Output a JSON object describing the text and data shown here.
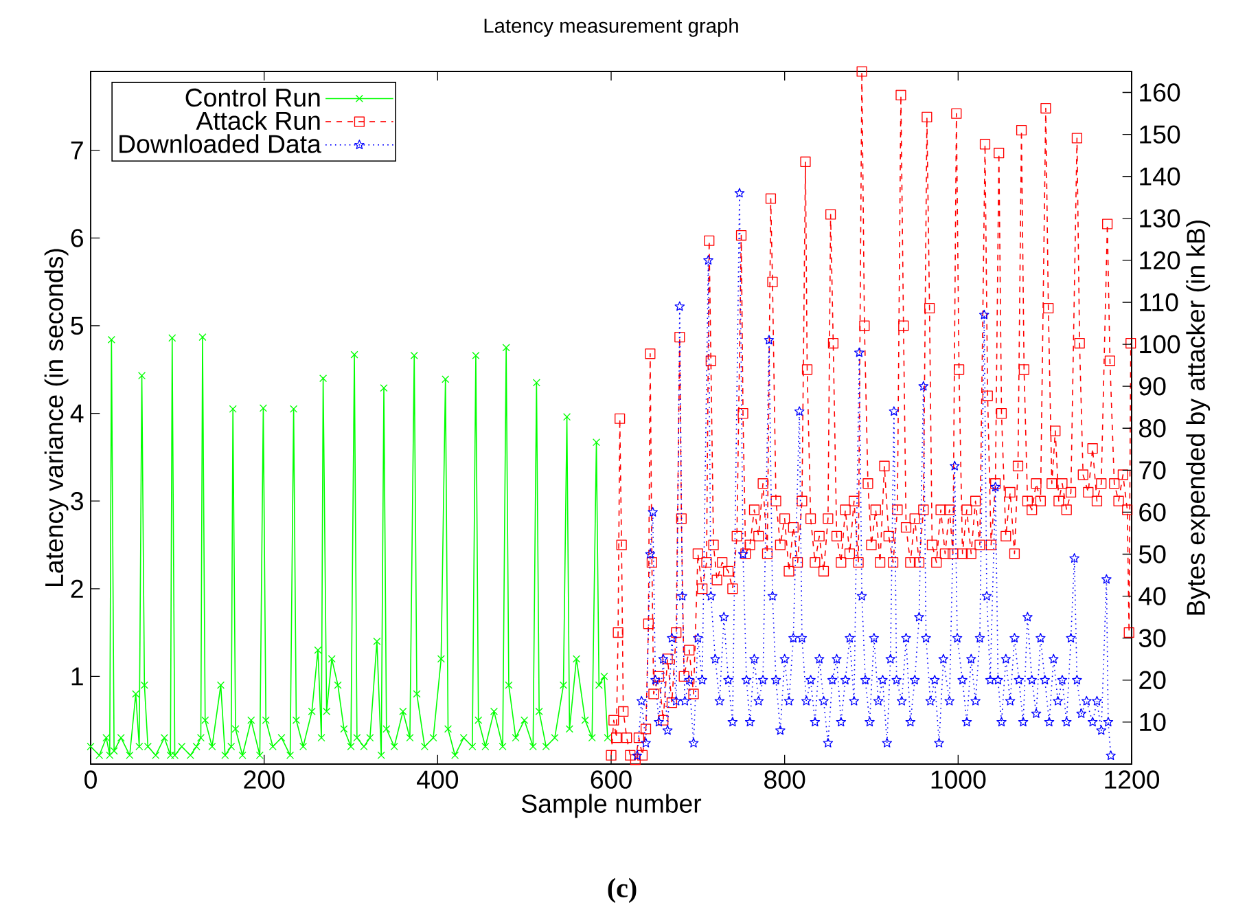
{
  "chart_data": {
    "type": "line",
    "title": "Latency measurement graph",
    "xlabel": "Sample number",
    "ylabel": "Latency variance (in seconds)",
    "y2label": "Bytes expended by attacker (in kB)",
    "xlim": [
      0,
      1200
    ],
    "xticks": [
      0,
      200,
      400,
      600,
      800,
      1000,
      1200
    ],
    "ylim": [
      0,
      7.9
    ],
    "yticks": [
      1,
      2,
      3,
      4,
      5,
      6,
      7
    ],
    "y2lim": [
      0,
      165
    ],
    "y2ticks": [
      10,
      20,
      30,
      40,
      50,
      60,
      70,
      80,
      90,
      100,
      110,
      120,
      130,
      140,
      150,
      160
    ],
    "legend": "top left",
    "grid": false,
    "annotations": [
      "(c)"
    ],
    "series": [
      {
        "name": "Control Run",
        "color": "#00ff00",
        "marker": "cross",
        "line_style": "solid",
        "x": [
          0,
          10,
          18,
          22,
          24,
          27,
          35,
          45,
          52,
          56,
          59,
          62,
          66,
          75,
          85,
          92,
          94,
          97,
          105,
          115,
          122,
          127,
          129,
          132,
          140,
          150,
          155,
          162,
          164,
          167,
          175,
          185,
          195,
          199,
          202,
          210,
          220,
          230,
          234,
          237,
          245,
          255,
          262,
          266,
          268,
          272,
          278,
          285,
          292,
          300,
          304,
          307,
          315,
          322,
          330,
          335,
          338,
          341,
          350,
          360,
          368,
          373,
          376,
          385,
          395,
          404,
          409,
          412,
          420,
          430,
          440,
          444,
          447,
          455,
          465,
          475,
          479,
          482,
          490,
          500,
          510,
          514,
          517,
          525,
          535,
          545,
          549,
          552,
          560,
          570,
          578,
          583,
          586,
          592,
          596
        ],
        "values": [
          0.2,
          0.1,
          0.3,
          0.1,
          4.84,
          0.15,
          0.3,
          0.1,
          0.8,
          0.2,
          4.43,
          0.9,
          0.2,
          0.1,
          0.3,
          0.1,
          4.86,
          0.1,
          0.2,
          0.1,
          0.2,
          0.3,
          4.87,
          0.5,
          0.2,
          0.9,
          0.1,
          0.2,
          4.05,
          0.4,
          0.1,
          0.5,
          0.1,
          4.06,
          0.5,
          0.2,
          0.3,
          0.1,
          4.05,
          0.5,
          0.2,
          0.6,
          1.3,
          0.3,
          4.4,
          0.6,
          1.2,
          0.9,
          0.4,
          0.2,
          4.67,
          0.3,
          0.2,
          0.3,
          1.4,
          0.1,
          4.29,
          0.4,
          0.2,
          0.6,
          0.3,
          4.66,
          0.8,
          0.2,
          0.3,
          1.2,
          4.39,
          0.4,
          0.1,
          0.3,
          0.2,
          4.66,
          0.5,
          0.2,
          0.6,
          0.2,
          4.75,
          0.9,
          0.3,
          0.5,
          0.2,
          4.35,
          0.6,
          0.2,
          0.3,
          0.9,
          3.96,
          0.4,
          1.2,
          0.5,
          0.3,
          3.67,
          0.9,
          1.0,
          0.3
        ]
      },
      {
        "name": "Attack Run",
        "color": "#ff0000",
        "marker": "square",
        "line_style": "dashed",
        "x": [
          600,
          603,
          606,
          608,
          610,
          612,
          614,
          618,
          622,
          628,
          632,
          636,
          640,
          643,
          645,
          647,
          649,
          655,
          660,
          665,
          670,
          675,
          679,
          681,
          684,
          690,
          695,
          700,
          705,
          710,
          713,
          715,
          718,
          722,
          728,
          735,
          740,
          745,
          750,
          752,
          755,
          760,
          765,
          770,
          775,
          780,
          784,
          786,
          790,
          795,
          800,
          805,
          810,
          815,
          820,
          824,
          826,
          830,
          835,
          840,
          845,
          850,
          853,
          856,
          860,
          865,
          870,
          875,
          880,
          885,
          889,
          892,
          896,
          900,
          905,
          910,
          915,
          920,
          925,
          930,
          934,
          937,
          940,
          945,
          950,
          955,
          960,
          964,
          967,
          970,
          975,
          980,
          985,
          990,
          994,
          998,
          1001,
          1005,
          1010,
          1015,
          1020,
          1025,
          1031,
          1034,
          1038,
          1043,
          1047,
          1050,
          1055,
          1060,
          1065,
          1069,
          1073,
          1076,
          1080,
          1085,
          1090,
          1095,
          1101,
          1104,
          1108,
          1112,
          1116,
          1120,
          1125,
          1130,
          1137,
          1140,
          1144,
          1150,
          1155,
          1160,
          1165,
          1172,
          1175,
          1180,
          1185,
          1190,
          1195,
          1197,
          1199
        ],
        "values": [
          0.1,
          0.5,
          0.3,
          1.5,
          3.94,
          2.5,
          0.6,
          0.3,
          0.1,
          0.05,
          0.3,
          0.1,
          0.4,
          1.6,
          4.68,
          2.3,
          0.8,
          1.0,
          0.5,
          1.2,
          0.7,
          1.5,
          4.87,
          2.8,
          1.0,
          1.3,
          0.8,
          2.4,
          2.0,
          2.3,
          5.97,
          4.6,
          2.5,
          2.1,
          2.3,
          2.2,
          2.0,
          2.6,
          6.03,
          4.0,
          2.4,
          2.5,
          2.9,
          2.6,
          3.2,
          2.4,
          6.45,
          5.5,
          3.0,
          2.5,
          2.8,
          2.2,
          2.7,
          2.3,
          3.0,
          6.87,
          4.5,
          2.8,
          2.3,
          2.6,
          2.2,
          2.8,
          6.27,
          4.8,
          2.6,
          2.3,
          2.9,
          2.4,
          3.0,
          2.3,
          7.9,
          5.0,
          3.2,
          2.5,
          2.9,
          2.3,
          3.4,
          2.6,
          2.3,
          2.9,
          7.63,
          5.0,
          2.7,
          2.3,
          2.8,
          2.3,
          2.9,
          7.38,
          5.2,
          2.5,
          2.3,
          2.9,
          2.4,
          2.9,
          2.4,
          7.42,
          4.5,
          2.4,
          2.9,
          2.4,
          3.0,
          2.5,
          7.07,
          4.2,
          2.5,
          3.2,
          6.97,
          4.0,
          2.6,
          3.1,
          2.4,
          3.4,
          7.23,
          4.5,
          3.0,
          2.9,
          3.2,
          3.0,
          7.48,
          5.2,
          3.2,
          3.8,
          3.0,
          3.2,
          2.9,
          3.1,
          7.14,
          4.8,
          3.3,
          3.1,
          3.6,
          3.0,
          3.2,
          6.16,
          4.6,
          3.2,
          3.0,
          3.3,
          2.9,
          1.5,
          4.8
        ]
      },
      {
        "name": "Downloaded Data",
        "color": "#0000ff",
        "marker": "star",
        "line_style": "dotted",
        "axis": "y2",
        "x": [
          630,
          635,
          640,
          645,
          648,
          651,
          655,
          660,
          665,
          670,
          675,
          679,
          682,
          685,
          690,
          695,
          700,
          705,
          712,
          715,
          720,
          725,
          730,
          735,
          740,
          748,
          752,
          756,
          760,
          765,
          770,
          775,
          782,
          786,
          790,
          795,
          800,
          805,
          810,
          817,
          820,
          825,
          830,
          835,
          840,
          845,
          850,
          855,
          860,
          865,
          870,
          875,
          880,
          886,
          889,
          893,
          898,
          903,
          908,
          913,
          918,
          922,
          926,
          929,
          935,
          940,
          945,
          950,
          955,
          960,
          963,
          968,
          973,
          978,
          983,
          990,
          996,
          999,
          1005,
          1010,
          1015,
          1020,
          1025,
          1030,
          1033,
          1037,
          1043,
          1046,
          1050,
          1055,
          1060,
          1065,
          1070,
          1075,
          1080,
          1085,
          1090,
          1095,
          1100,
          1105,
          1110,
          1115,
          1120,
          1125,
          1130,
          1134,
          1137,
          1142,
          1148,
          1155,
          1160,
          1165,
          1171,
          1173,
          1176
        ],
        "values": [
          2,
          15,
          5,
          50,
          60,
          20,
          10,
          25,
          8,
          30,
          15,
          109,
          40,
          15,
          20,
          5,
          30,
          20,
          120,
          40,
          25,
          15,
          35,
          20,
          10,
          136,
          50,
          20,
          10,
          25,
          15,
          20,
          101,
          40,
          20,
          8,
          25,
          15,
          30,
          84,
          30,
          15,
          20,
          10,
          25,
          15,
          5,
          20,
          25,
          10,
          20,
          30,
          15,
          98,
          40,
          20,
          10,
          30,
          15,
          20,
          5,
          25,
          84,
          20,
          15,
          30,
          10,
          20,
          35,
          90,
          30,
          15,
          20,
          5,
          25,
          15,
          71,
          30,
          20,
          10,
          25,
          15,
          30,
          107,
          40,
          20,
          66,
          20,
          10,
          25,
          15,
          30,
          20,
          10,
          35,
          20,
          12,
          30,
          20,
          10,
          25,
          15,
          20,
          10,
          30,
          49,
          20,
          12,
          15,
          10,
          15,
          8,
          44,
          10,
          2
        ]
      }
    ]
  }
}
